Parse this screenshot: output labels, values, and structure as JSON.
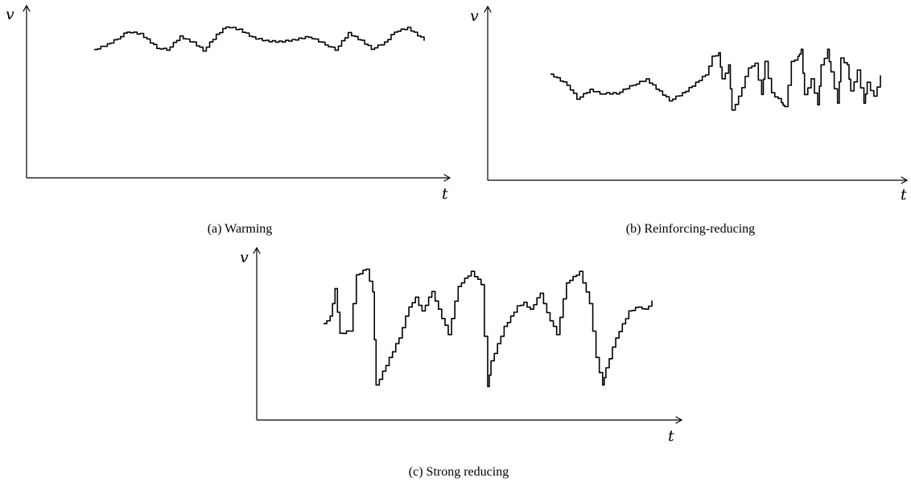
{
  "chart_data": [
    {
      "id": "a",
      "type": "line",
      "caption": "(a)  Warming",
      "xlabel": "t",
      "ylabel": "v",
      "ylim": [
        0,
        10
      ],
      "x": [
        0,
        0.04,
        0.07,
        0.1,
        0.14,
        0.19,
        0.22,
        0.26,
        0.3,
        0.33,
        0.37,
        0.4,
        0.44,
        0.48,
        0.52,
        0.56,
        0.6,
        0.65,
        0.7,
        0.73,
        0.77,
        0.81,
        0.84,
        0.88,
        0.91,
        0.95,
        1.0
      ],
      "values": [
        7.45,
        7.75,
        8.1,
        8.5,
        8.35,
        7.55,
        7.45,
        8.2,
        7.85,
        7.4,
        8.3,
        8.8,
        8.6,
        8.15,
        7.95,
        7.9,
        8.0,
        8.2,
        7.75,
        7.45,
        8.4,
        7.95,
        7.5,
        7.85,
        8.5,
        8.7,
        8.0
      ]
    },
    {
      "id": "b",
      "type": "line",
      "caption": "(b)  Reinforcing-reducing",
      "xlabel": "t",
      "ylabel": "v",
      "ylim": [
        0,
        10
      ],
      "x": [
        0,
        0.05,
        0.08,
        0.12,
        0.15,
        0.2,
        0.25,
        0.29,
        0.33,
        0.36,
        0.4,
        0.44,
        0.47,
        0.49,
        0.51,
        0.52,
        0.54,
        0.55,
        0.57,
        0.6,
        0.62,
        0.64,
        0.65,
        0.67,
        0.7,
        0.71,
        0.73,
        0.75,
        0.76,
        0.77,
        0.79,
        0.81,
        0.82,
        0.84,
        0.85,
        0.87,
        0.88,
        0.9,
        0.91,
        0.93,
        0.95,
        0.96,
        0.98,
        1.0
      ],
      "values": [
        6.1,
        5.5,
        4.7,
        5.2,
        5.0,
        5.0,
        5.5,
        5.8,
        5.1,
        4.6,
        5.0,
        5.6,
        6.1,
        7.1,
        7.3,
        5.8,
        6.6,
        4.0,
        4.8,
        6.5,
        6.7,
        4.9,
        6.8,
        5.0,
        4.5,
        4.2,
        6.8,
        7.1,
        7.5,
        4.9,
        5.8,
        4.3,
        6.6,
        7.5,
        6.2,
        4.4,
        7.0,
        6.6,
        5.1,
        6.3,
        4.4,
        5.6,
        4.8,
        6.0
      ]
    },
    {
      "id": "c",
      "type": "line",
      "caption": "(c)  Strong reducing",
      "xlabel": "t",
      "ylabel": "v",
      "ylim": [
        0,
        10
      ],
      "x": [
        0,
        0.02,
        0.035,
        0.05,
        0.08,
        0.1,
        0.13,
        0.15,
        0.16,
        0.2,
        0.23,
        0.26,
        0.28,
        0.3,
        0.33,
        0.35,
        0.38,
        0.41,
        0.45,
        0.48,
        0.5,
        0.51,
        0.55,
        0.59,
        0.61,
        0.63,
        0.66,
        0.68,
        0.71,
        0.74,
        0.78,
        0.81,
        0.83,
        0.85,
        0.86,
        0.89,
        0.93,
        0.96,
        0.98,
        1.0
      ],
      "values": [
        5.6,
        6.0,
        7.6,
        5.0,
        5.2,
        8.4,
        8.8,
        7.4,
        2.0,
        3.6,
        4.8,
        6.6,
        7.1,
        6.3,
        7.5,
        6.4,
        5.0,
        7.8,
        8.6,
        7.9,
        1.9,
        3.4,
        5.4,
        6.6,
        6.8,
        6.4,
        7.4,
        6.2,
        5.0,
        8.0,
        8.6,
        6.8,
        3.6,
        2.0,
        3.0,
        4.8,
        6.3,
        6.6,
        6.4,
        6.9
      ]
    }
  ]
}
